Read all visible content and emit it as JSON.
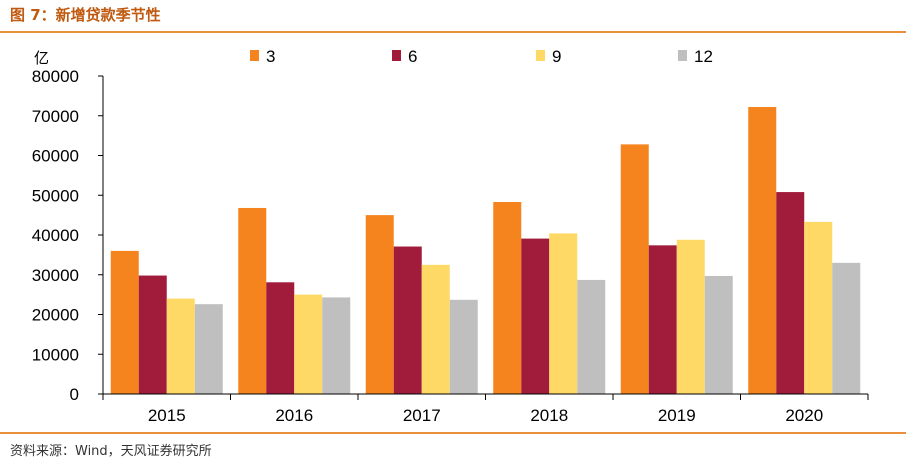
{
  "figure": {
    "title": "图 7：新增贷款季节性",
    "source": "资料来源：Wind，天风证券研究所"
  },
  "chart_data": {
    "type": "bar",
    "unit": "亿",
    "categories": [
      "2015",
      "2016",
      "2017",
      "2018",
      "2019",
      "2020"
    ],
    "series": [
      {
        "name": "3",
        "color": "#F5841F",
        "values": [
          36000,
          46800,
          45000,
          48300,
          62800,
          72200
        ]
      },
      {
        "name": "6",
        "color": "#A11C3B",
        "values": [
          29800,
          28100,
          37100,
          39100,
          37400,
          50800
        ]
      },
      {
        "name": "9",
        "color": "#FFD966",
        "values": [
          24000,
          25000,
          32500,
          40400,
          38800,
          43300
        ]
      },
      {
        "name": "12",
        "color": "#BFBFBF",
        "values": [
          22600,
          24300,
          23700,
          28700,
          29700,
          33000
        ]
      }
    ],
    "ylim": [
      0,
      80000
    ],
    "yticks": [
      0,
      10000,
      20000,
      30000,
      40000,
      50000,
      60000,
      70000,
      80000
    ],
    "legend_position": "top",
    "grid": false
  }
}
